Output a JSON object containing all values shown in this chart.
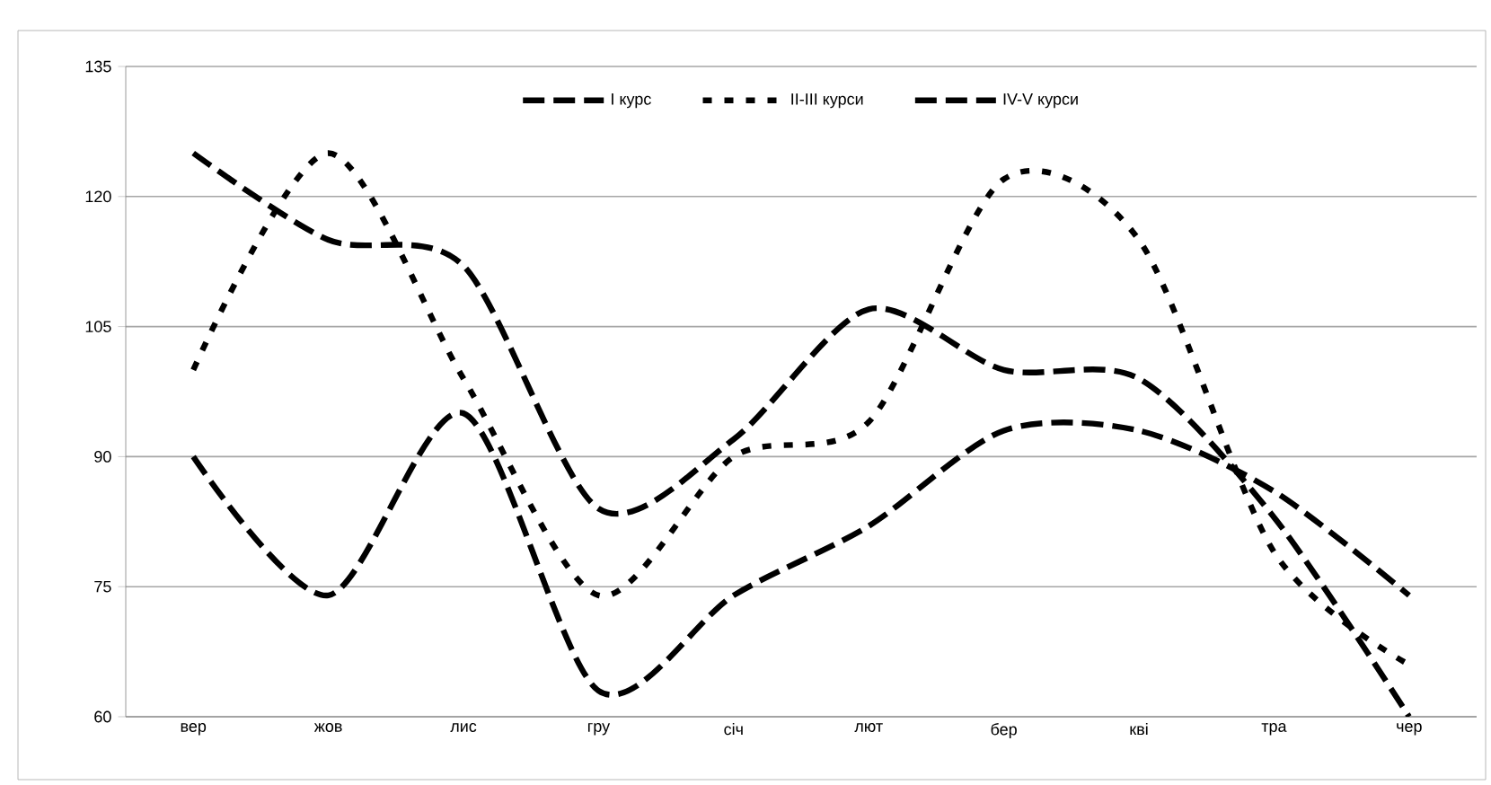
{
  "chart_data": {
    "type": "line",
    "categories": [
      "вер",
      "жов",
      "лис",
      "гру",
      "січ",
      "лют",
      "бер",
      "кві",
      "тра",
      "чер"
    ],
    "series": [
      {
        "name": "I курс",
        "color": "#000000",
        "line_style": "dashed",
        "values": [
          90,
          74,
          95,
          63,
          74,
          82,
          93,
          93,
          86,
          74
        ]
      },
      {
        "name": "II-III курси",
        "color": "#000000",
        "line_style": "dotted",
        "values": [
          100,
          125,
          99,
          74,
          90,
          94,
          122,
          115,
          79,
          66
        ]
      },
      {
        "name": "IV-V курси",
        "color": "#000000",
        "line_style": "dashed",
        "values": [
          125,
          115,
          112,
          84,
          92,
          107,
          100,
          99,
          83,
          60
        ]
      }
    ],
    "ylim": [
      60,
      135
    ],
    "yticks": [
      60,
      75,
      90,
      105,
      120,
      135
    ],
    "grid": "y",
    "legend": "top"
  }
}
